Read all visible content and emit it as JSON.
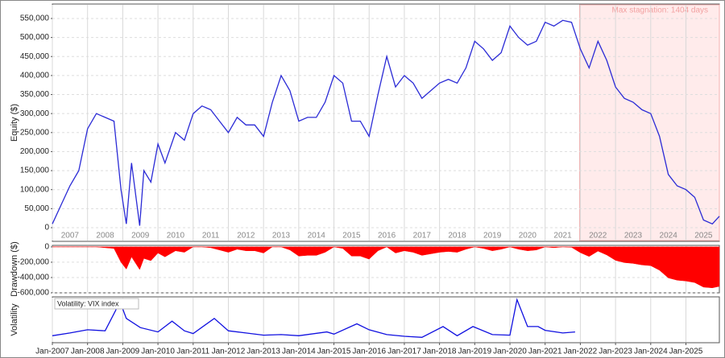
{
  "chart_data": [
    {
      "type": "line",
      "y_label": "Equity ($)",
      "annotation": "Max stagnation: 1404 days",
      "shaded_span": [
        2021.98,
        2025.95
      ],
      "x": [
        2007.0,
        2007.25,
        2007.5,
        2007.75,
        2008.0,
        2008.25,
        2008.5,
        2008.75,
        2008.95,
        2009.1,
        2009.25,
        2009.48,
        2009.6,
        2009.8,
        2010.0,
        2010.2,
        2010.5,
        2010.75,
        2011.0,
        2011.25,
        2011.5,
        2011.75,
        2012.0,
        2012.25,
        2012.5,
        2012.75,
        2013.0,
        2013.25,
        2013.5,
        2013.75,
        2014.0,
        2014.25,
        2014.5,
        2014.75,
        2015.0,
        2015.25,
        2015.5,
        2015.75,
        2016.0,
        2016.25,
        2016.5,
        2016.75,
        2017.0,
        2017.25,
        2017.5,
        2017.75,
        2018.0,
        2018.25,
        2018.5,
        2018.75,
        2019.0,
        2019.25,
        2019.5,
        2019.75,
        2020.0,
        2020.25,
        2020.5,
        2020.75,
        2021.0,
        2021.25,
        2021.5,
        2021.75,
        2022.0,
        2022.25,
        2022.5,
        2022.75,
        2023.0,
        2023.25,
        2023.5,
        2023.75,
        2024.0,
        2024.25,
        2024.5,
        2024.75,
        2025.0,
        2025.25,
        2025.5,
        2025.75,
        2025.95
      ],
      "series": [
        {
          "color": "#2b2bd6",
          "values": [
            10000,
            60000,
            110000,
            150000,
            260000,
            300000,
            290000,
            280000,
            100000,
            10000,
            170000,
            5000,
            150000,
            120000,
            220000,
            170000,
            250000,
            230000,
            300000,
            320000,
            310000,
            280000,
            250000,
            290000,
            270000,
            270000,
            240000,
            330000,
            400000,
            360000,
            280000,
            290000,
            290000,
            330000,
            400000,
            380000,
            280000,
            280000,
            240000,
            350000,
            450000,
            370000,
            400000,
            380000,
            340000,
            360000,
            380000,
            390000,
            380000,
            420000,
            490000,
            470000,
            440000,
            460000,
            530000,
            500000,
            480000,
            490000,
            540000,
            530000,
            545000,
            540000,
            470000,
            420000,
            490000,
            440000,
            370000,
            340000,
            330000,
            310000,
            300000,
            240000,
            140000,
            110000,
            100000,
            80000,
            20000,
            10000,
            30000
          ]
        }
      ],
      "xlim": [
        2007,
        2025.95
      ],
      "ylim": [
        -36000,
        588000
      ],
      "yticks": [
        0,
        {
          "value": 50000,
          "label": "50,000"
        },
        {
          "value": 100000,
          "label": "100,000"
        },
        {
          "value": 150000,
          "label": "150,000"
        },
        {
          "value": 200000,
          "label": "200,000"
        },
        {
          "value": 250000,
          "label": "250,000"
        },
        {
          "value": 300000,
          "label": "300,000"
        },
        {
          "value": 350000,
          "label": "350,000"
        },
        {
          "value": 400000,
          "label": "400,000"
        },
        {
          "value": 450000,
          "label": "450,000"
        },
        {
          "value": 500000,
          "label": "500,000"
        },
        {
          "value": 550000,
          "label": "550,000"
        }
      ],
      "xticks": [
        {
          "value": 2007.5,
          "label": "2007"
        },
        {
          "value": 2008.5,
          "label": "2008"
        },
        {
          "value": 2009.5,
          "label": "2009"
        },
        {
          "value": 2010.5,
          "label": "2010"
        },
        {
          "value": 2011.5,
          "label": "2011"
        },
        {
          "value": 2012.5,
          "label": "2012"
        },
        {
          "value": 2013.5,
          "label": "2013"
        },
        {
          "value": 2014.5,
          "label": "2014"
        },
        {
          "value": 2015.5,
          "label": "2015"
        },
        {
          "value": 2016.5,
          "label": "2016"
        },
        {
          "value": 2017.5,
          "label": "2017"
        },
        {
          "value": 2018.5,
          "label": "2018"
        },
        {
          "value": 2019.5,
          "label": "2019"
        },
        {
          "value": 2020.5,
          "label": "2020"
        },
        {
          "value": 2021.5,
          "label": "2021"
        },
        {
          "value": 2022.5,
          "label": "2022"
        },
        {
          "value": 2023.5,
          "label": "2023"
        },
        {
          "value": 2024.5,
          "label": "2024"
        },
        {
          "value": 2025.5,
          "label": "2025"
        }
      ],
      "grid": true
    },
    {
      "type": "area",
      "y_label": "Drawdown ($)",
      "color": "#ff0000",
      "x": [
        2007.0,
        2007.25,
        2007.5,
        2007.75,
        2008.0,
        2008.25,
        2008.5,
        2008.75,
        2008.95,
        2009.1,
        2009.25,
        2009.48,
        2009.6,
        2009.8,
        2010.0,
        2010.2,
        2010.5,
        2010.75,
        2011.0,
        2011.25,
        2011.5,
        2011.75,
        2012.0,
        2012.25,
        2012.5,
        2012.75,
        2013.0,
        2013.25,
        2013.5,
        2013.75,
        2014.0,
        2014.25,
        2014.5,
        2014.75,
        2015.0,
        2015.25,
        2015.5,
        2015.75,
        2016.0,
        2016.25,
        2016.5,
        2016.75,
        2017.0,
        2017.25,
        2017.5,
        2017.75,
        2018.0,
        2018.25,
        2018.5,
        2018.75,
        2019.0,
        2019.25,
        2019.5,
        2019.75,
        2020.0,
        2020.25,
        2020.5,
        2020.75,
        2021.0,
        2021.25,
        2021.5,
        2021.75,
        2022.0,
        2022.25,
        2022.5,
        2022.75,
        2023.0,
        2023.25,
        2023.5,
        2023.75,
        2024.0,
        2024.25,
        2024.5,
        2024.75,
        2025.0,
        2025.25,
        2025.5,
        2025.75,
        2025.95
      ],
      "values": [
        0,
        0,
        0,
        0,
        0,
        0,
        -10000,
        -20000,
        -200000,
        -290000,
        -130000,
        -295000,
        -150000,
        -180000,
        -80000,
        -130000,
        -50000,
        -70000,
        0,
        0,
        -10000,
        -40000,
        -70000,
        -30000,
        -50000,
        -50000,
        -80000,
        0,
        0,
        -40000,
        -120000,
        -110000,
        -110000,
        -70000,
        0,
        -20000,
        -120000,
        -120000,
        -160000,
        -50000,
        0,
        -80000,
        -50000,
        -70000,
        -110000,
        -90000,
        -70000,
        -60000,
        -70000,
        -30000,
        0,
        -20000,
        -50000,
        -30000,
        0,
        -30000,
        -50000,
        -40000,
        0,
        -10000,
        0,
        -5000,
        -75000,
        -125000,
        -55000,
        -105000,
        -175000,
        -205000,
        -215000,
        -235000,
        -245000,
        -305000,
        -405000,
        -435000,
        -445000,
        -465000,
        -525000,
        -535000,
        -515000
      ],
      "xlim": [
        2007,
        2025.95
      ],
      "ylim": [
        -600000,
        20000
      ],
      "yticks": [
        0,
        {
          "value": -200000,
          "label": "-200,000"
        },
        {
          "value": -400000,
          "label": "-400,000"
        },
        {
          "value": -600000,
          "label": "-600,000"
        }
      ],
      "grid": true
    },
    {
      "type": "line",
      "y_label": "Volatility",
      "x": [
        2007.0,
        2007.5,
        2008.0,
        2008.5,
        2008.8,
        2008.9,
        2009.1,
        2009.5,
        2010.0,
        2010.4,
        2010.75,
        2011.0,
        2011.6,
        2012.0,
        2012.5,
        2013.0,
        2013.5,
        2014.0,
        2014.8,
        2015.0,
        2015.65,
        2016.0,
        2016.5,
        2017.0,
        2017.5,
        2018.1,
        2018.5,
        2018.95,
        2019.5,
        2020.0,
        2020.2,
        2020.5,
        2020.8,
        2021.0,
        2021.5,
        2021.85
      ],
      "series": [
        {
          "name": "Volatility: VIX index",
          "color": "#1010e0",
          "values": [
            13,
            18,
            24,
            22,
            60,
            80,
            45,
            28,
            20,
            40,
            22,
            17,
            45,
            22,
            18,
            14,
            15,
            13,
            20,
            16,
            35,
            24,
            15,
            12,
            10,
            30,
            13,
            30,
            15,
            14,
            80,
            30,
            30,
            23,
            18,
            20
          ]
        }
      ],
      "xlim": [
        2007,
        2025.95
      ],
      "ylim": [
        0,
        85
      ],
      "xticks": [
        {
          "value": 2007,
          "label": "Jan-2007"
        },
        {
          "value": 2008,
          "label": "Jan-2008"
        },
        {
          "value": 2009,
          "label": "Jan-2009"
        },
        {
          "value": 2010,
          "label": "Jan-2010"
        },
        {
          "value": 2011,
          "label": "Jan-2011"
        },
        {
          "value": 2012,
          "label": "Jan-2012"
        },
        {
          "value": 2013,
          "label": "Jan-2013"
        },
        {
          "value": 2014,
          "label": "Jan-2014"
        },
        {
          "value": 2015,
          "label": "Jan-2015"
        },
        {
          "value": 2016,
          "label": "Jan-2016"
        },
        {
          "value": 2017,
          "label": "Jan-2017"
        },
        {
          "value": 2018,
          "label": "Jan-2018"
        },
        {
          "value": 2019,
          "label": "Jan-2019"
        },
        {
          "value": 2020,
          "label": "Jan-2020"
        },
        {
          "value": 2021,
          "label": "Jan-2021"
        },
        {
          "value": 2022,
          "label": "Jan-2022"
        },
        {
          "value": 2023,
          "label": "Jan-2023"
        },
        {
          "value": 2024,
          "label": "Jan-2024"
        },
        {
          "value": 2025,
          "label": "Jan-2025"
        }
      ],
      "grid": true
    }
  ]
}
